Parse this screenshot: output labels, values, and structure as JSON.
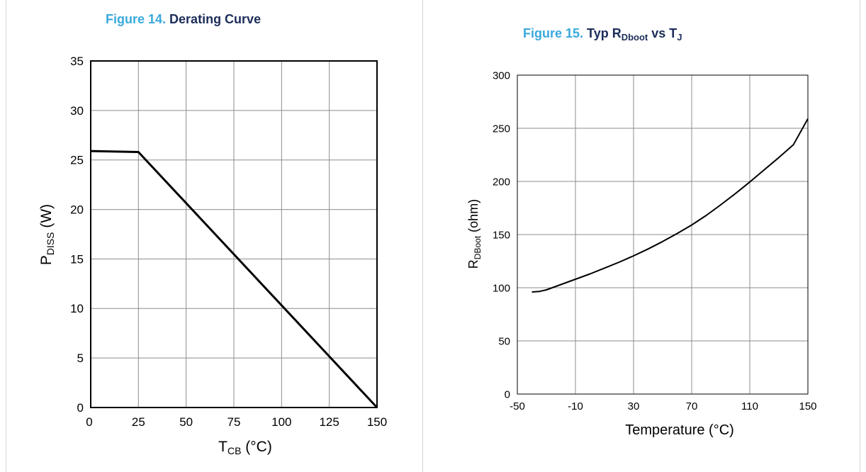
{
  "figures": [
    {
      "number": "Figure 14.",
      "title": "Derating Curve"
    },
    {
      "number": "Figure 15.",
      "title_main": "Typ R",
      "title_sub": "Dboot",
      "title_mid": " vs T",
      "title_sub2": "J"
    }
  ],
  "chart_data": [
    {
      "type": "line",
      "title": "Figure 14. Derating Curve",
      "xlabel_main": "T",
      "xlabel_sub": "CB",
      "xlabel_rest": " (°C)",
      "ylabel_main": "P",
      "ylabel_sub": "DISS",
      "ylabel_rest": " (W)",
      "xlim": [
        0,
        150
      ],
      "ylim": [
        0,
        35
      ],
      "xticks": [
        0,
        25,
        50,
        75,
        100,
        125,
        150
      ],
      "yticks": [
        0,
        5,
        10,
        15,
        20,
        25,
        30,
        35
      ],
      "grid": true,
      "series": [
        {
          "x": [
            0,
            25,
            150
          ],
          "y": [
            25.9,
            25.8,
            0
          ]
        }
      ]
    },
    {
      "type": "line",
      "title": "Figure 15. Typ RDboot vs TJ",
      "xlabel": "Temperature (°C)",
      "ylabel_main": "R",
      "ylabel_sub": "DBoot",
      "ylabel_rest": "  (ohm)",
      "xlim": [
        -50,
        150
      ],
      "ylim": [
        0,
        300
      ],
      "xticks": [
        -50,
        -10,
        30,
        70,
        110,
        150
      ],
      "yticks": [
        0,
        50,
        100,
        150,
        200,
        250,
        300
      ],
      "grid": true,
      "series": [
        {
          "x": [
            -40,
            -35,
            -30,
            -20,
            -10,
            0,
            10,
            20,
            30,
            40,
            50,
            60,
            70,
            80,
            90,
            100,
            110,
            120,
            130,
            140,
            150
          ],
          "y": [
            96,
            96.5,
            98,
            103,
            108,
            113,
            118.5,
            124,
            130,
            136.5,
            143.5,
            151,
            159,
            168,
            178,
            188.5,
            199.5,
            211,
            222.5,
            234.5,
            259
          ]
        }
      ]
    }
  ]
}
